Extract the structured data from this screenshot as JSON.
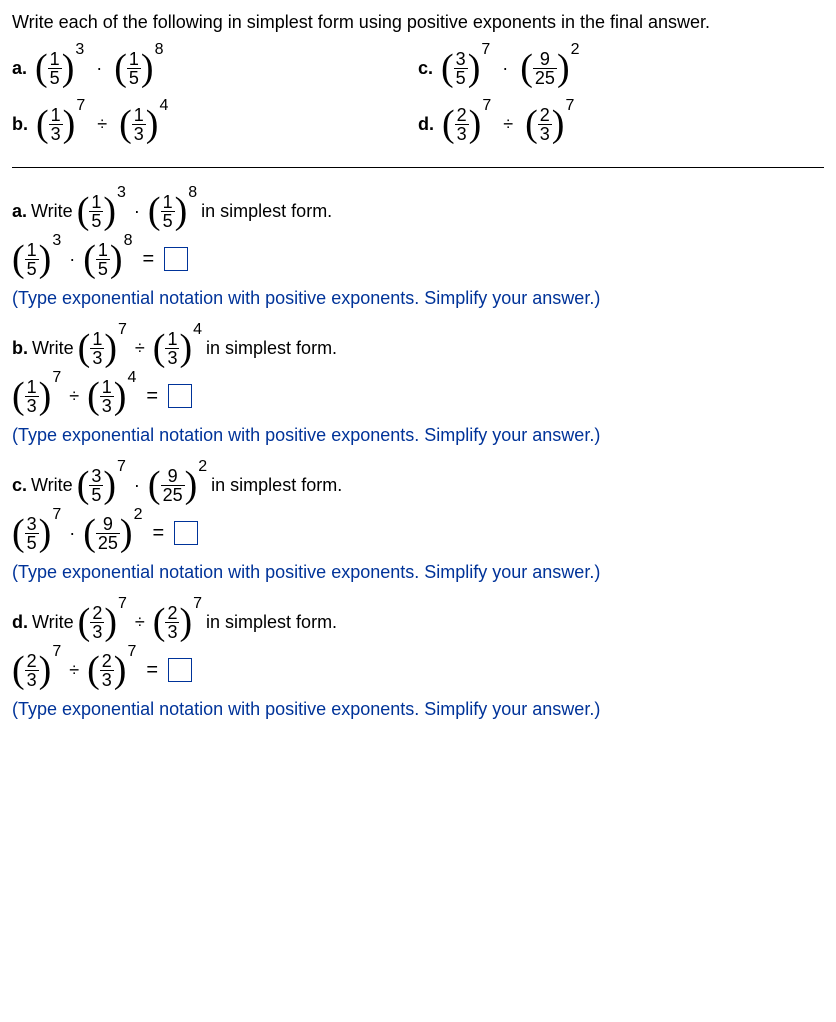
{
  "header": "Write each of the following in simplest form using positive exponents in the final answer.",
  "problems": {
    "a": {
      "label": "a.",
      "t1": {
        "num": "1",
        "den": "5",
        "exp": "3"
      },
      "op": "·",
      "t2": {
        "num": "1",
        "den": "5",
        "exp": "8"
      }
    },
    "c": {
      "label": "c.",
      "t1": {
        "num": "3",
        "den": "5",
        "exp": "7"
      },
      "op": "·",
      "t2": {
        "num": "9",
        "den": "25",
        "exp": "2"
      }
    },
    "b": {
      "label": "b.",
      "t1": {
        "num": "1",
        "den": "3",
        "exp": "7"
      },
      "op": "÷",
      "t2": {
        "num": "1",
        "den": "3",
        "exp": "4"
      }
    },
    "d": {
      "label": "d.",
      "t1": {
        "num": "2",
        "den": "3",
        "exp": "7"
      },
      "op": "÷",
      "t2": {
        "num": "2",
        "den": "3",
        "exp": "7"
      }
    }
  },
  "sections": {
    "a": {
      "label": "a.",
      "word": "Write",
      "t1": {
        "num": "1",
        "den": "5",
        "exp": "3"
      },
      "op": "·",
      "t2": {
        "num": "1",
        "den": "5",
        "exp": "8"
      },
      "suffix": "in simplest form."
    },
    "b": {
      "label": "b.",
      "word": "Write",
      "t1": {
        "num": "1",
        "den": "3",
        "exp": "7"
      },
      "op": "÷",
      "t2": {
        "num": "1",
        "den": "3",
        "exp": "4"
      },
      "suffix": "in simplest form."
    },
    "c": {
      "label": "c.",
      "word": "Write",
      "t1": {
        "num": "3",
        "den": "5",
        "exp": "7"
      },
      "op": "·",
      "t2": {
        "num": "9",
        "den": "25",
        "exp": "2"
      },
      "suffix": "in simplest form."
    },
    "d": {
      "label": "d.",
      "word": "Write",
      "t1": {
        "num": "2",
        "den": "3",
        "exp": "7"
      },
      "op": "÷",
      "t2": {
        "num": "2",
        "den": "3",
        "exp": "7"
      },
      "suffix": "in simplest form."
    }
  },
  "hint": "(Type exponential notation with positive exponents. Simplify your answer.)",
  "equals": "="
}
